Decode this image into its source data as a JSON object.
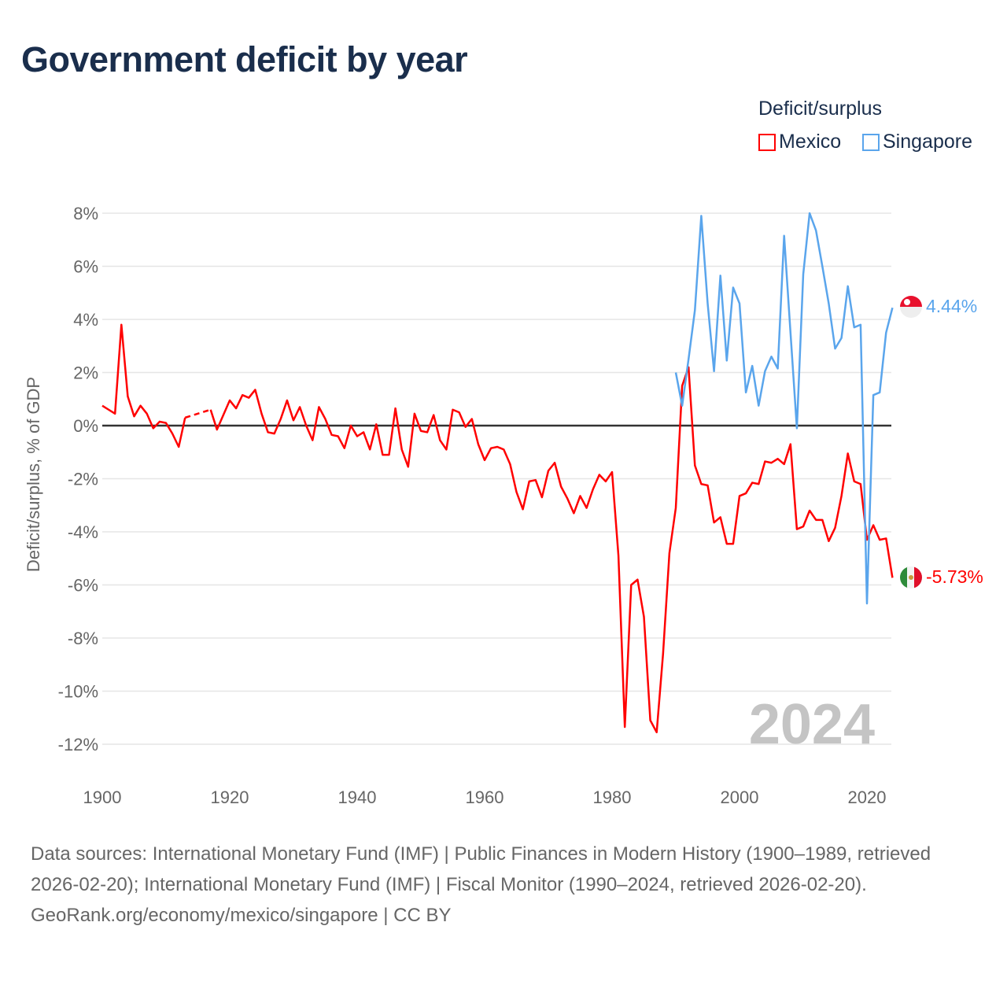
{
  "title": "Government deficit by year",
  "legend": {
    "title": "Deficit/surplus",
    "items": [
      "Mexico",
      "Singapore"
    ]
  },
  "year_watermark": "2024",
  "end_labels": {
    "mexico": "-5.73%",
    "singapore": "4.44%"
  },
  "footer": {
    "sources": "Data sources: International Monetary Fund (IMF) | Public Finances in Modern History (1900–1989, retrieved 2026-02-20); International Monetary Fund (IMF) | Fiscal Monitor (1990–2024, retrieved 2026-02-20).",
    "credit": "GeoRank.org/economy/mexico/singapore | CC BY"
  },
  "chart_data": {
    "type": "line",
    "title": "Government deficit by year",
    "xlabel": "",
    "ylabel": "Deficit/surplus, % of GDP",
    "xlim": [
      1900,
      2024
    ],
    "ylim": [
      -12,
      8
    ],
    "x_ticks": [
      "1900",
      "1920",
      "1940",
      "1960",
      "1980",
      "2000",
      "2020"
    ],
    "y_ticks": [
      "8%",
      "6%",
      "4%",
      "2%",
      "0%",
      "-2%",
      "-4%",
      "-6%",
      "-8%",
      "-10%",
      "-12%"
    ],
    "grid": true,
    "legend_position": "top-right",
    "colors": {
      "Mexico": "#ff0000",
      "Singapore": "#5aa5ec"
    },
    "series": [
      {
        "name": "Mexico",
        "start_year": 1900,
        "values": [
          0.75,
          0.6,
          0.45,
          3.8,
          1.1,
          0.35,
          0.75,
          0.45,
          -0.1,
          0.15,
          0.1,
          -0.3,
          -0.8,
          0.3,
          null,
          null,
          null,
          0.6,
          -0.15,
          0.4,
          0.95,
          0.65,
          1.15,
          1.05,
          1.35,
          0.45,
          -0.25,
          -0.3,
          0.25,
          0.95,
          0.2,
          0.7,
          0.0,
          -0.55,
          0.7,
          0.25,
          -0.35,
          -0.4,
          -0.85,
          0.0,
          -0.4,
          -0.25,
          -0.9,
          0.05,
          -1.1,
          -1.1,
          0.65,
          -0.9,
          -1.55,
          0.45,
          -0.2,
          -0.25,
          0.4,
          -0.55,
          -0.9,
          0.6,
          0.5,
          -0.05,
          0.25,
          -0.7,
          -1.3,
          -0.85,
          -0.8,
          -0.9,
          -1.45,
          -2.5,
          -3.15,
          -2.1,
          -2.05,
          -2.7,
          -1.7,
          -1.4,
          -2.3,
          -2.75,
          -3.3,
          -2.65,
          -3.1,
          -2.4,
          -1.85,
          -2.1,
          -1.75,
          -4.9,
          -11.35,
          -6.0,
          -5.8,
          -7.2,
          -11.1,
          -11.55,
          -8.6,
          -4.8,
          -3.1,
          1.5,
          2.2,
          -1.5,
          -2.2,
          -2.25,
          -3.65,
          -3.45,
          -4.45,
          -4.45,
          -2.65,
          -2.55,
          -2.15,
          -2.2,
          -1.35,
          -1.4,
          -1.25,
          -1.45,
          -0.7,
          -3.9,
          -3.8,
          -3.2,
          -3.55,
          -3.55,
          -4.35,
          -3.85,
          -2.65,
          -1.05,
          -2.1,
          -2.2,
          -4.3,
          -3.75,
          -4.3,
          -4.25,
          -5.73
        ]
      },
      {
        "name": "Singapore",
        "start_year": 1990,
        "values": [
          2.0,
          0.75,
          2.5,
          4.35,
          7.9,
          4.6,
          2.05,
          5.65,
          2.45,
          5.2,
          4.6,
          1.25,
          2.25,
          0.75,
          2.05,
          2.6,
          2.15,
          7.15,
          3.5,
          -0.1,
          5.7,
          8.0,
          7.35,
          6.0,
          4.6,
          2.9,
          3.3,
          5.25,
          3.7,
          3.8,
          -6.7,
          1.15,
          1.25,
          3.5,
          4.44
        ]
      }
    ]
  }
}
